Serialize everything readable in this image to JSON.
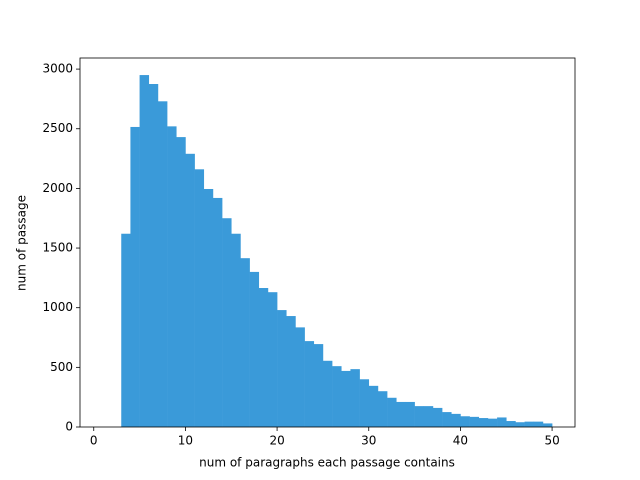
{
  "chart_data": {
    "type": "histogram",
    "x_label": "num of paragraphs each passage contains",
    "y_label": "num of passage",
    "bins": [
      3,
      4,
      5,
      6,
      7,
      8,
      9,
      10,
      11,
      12,
      13,
      14,
      15,
      16,
      17,
      18,
      19,
      20,
      21,
      22,
      23,
      24,
      25,
      26,
      27,
      28,
      29,
      30,
      31,
      32,
      33,
      34,
      35,
      36,
      37,
      38,
      39,
      40,
      41,
      42,
      43,
      44,
      45,
      46,
      47,
      48,
      49,
      50
    ],
    "values": [
      1620,
      2515,
      2950,
      2875,
      2730,
      2520,
      2430,
      2290,
      2160,
      1995,
      1920,
      1750,
      1620,
      1415,
      1300,
      1165,
      1130,
      980,
      930,
      835,
      720,
      695,
      555,
      510,
      470,
      485,
      400,
      345,
      300,
      245,
      210,
      210,
      175,
      175,
      160,
      125,
      110,
      90,
      85,
      75,
      70,
      80,
      50,
      40,
      45,
      45,
      30
    ],
    "color": "#3a9ad9",
    "xlim": [
      -1.5,
      52.5
    ],
    "xticks": [
      0,
      10,
      20,
      30,
      40,
      50
    ],
    "ylim": [
      0,
      3093
    ],
    "yticks": [
      0,
      500,
      1000,
      1500,
      2000,
      2500,
      3000
    ],
    "grid": false
  }
}
